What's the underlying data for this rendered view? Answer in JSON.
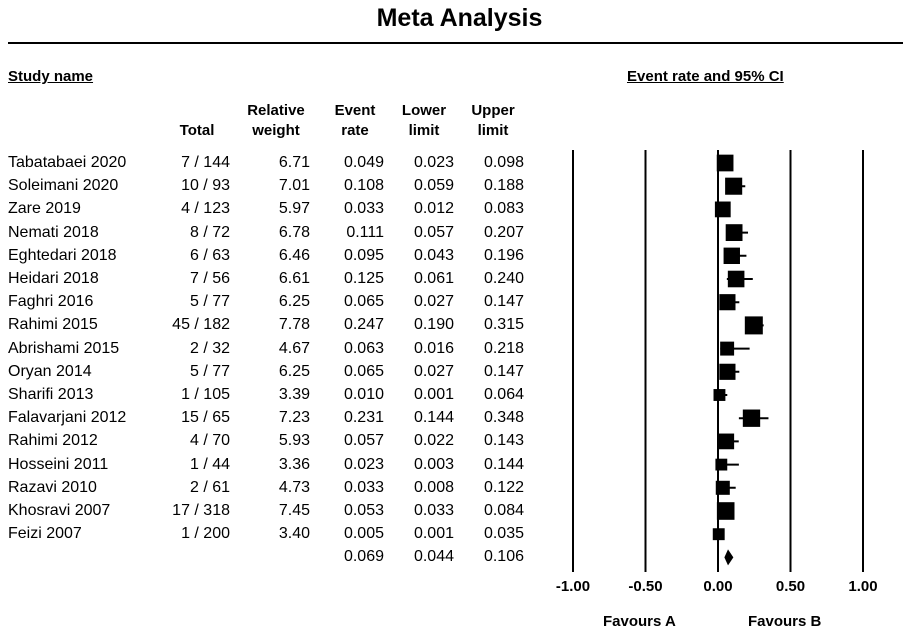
{
  "title": "Meta Analysis",
  "headers": {
    "study_name": "Study name",
    "ci": "Event rate and 95% CI",
    "total": "Total",
    "weight": [
      "Relative",
      "weight"
    ],
    "rate": [
      "Event",
      "rate"
    ],
    "lower": [
      "Lower",
      "limit"
    ],
    "upper": [
      "Upper",
      "limit"
    ]
  },
  "favours": {
    "a": "Favours A",
    "b": "Favours B"
  },
  "chart_data": {
    "type": "forest",
    "title": "Meta Analysis",
    "xlim": [
      -1.0,
      1.0
    ],
    "x_ticks": [
      "-1.00",
      "-0.50",
      "0.00",
      "0.50",
      "1.00"
    ],
    "x_tick_values": [
      -1.0,
      -0.5,
      0.0,
      0.5,
      1.0
    ],
    "studies": [
      {
        "name": "Tabatabaei 2020",
        "total": "7 / 144",
        "weight": "6.71",
        "rate": "0.049",
        "lower": "0.023",
        "upper": "0.098"
      },
      {
        "name": "Soleimani 2020",
        "total": "10 / 93",
        "weight": "7.01",
        "rate": "0.108",
        "lower": "0.059",
        "upper": "0.188"
      },
      {
        "name": "Zare 2019",
        "total": "4 / 123",
        "weight": "5.97",
        "rate": "0.033",
        "lower": "0.012",
        "upper": "0.083"
      },
      {
        "name": "Nemati 2018",
        "total": "8 / 72",
        "weight": "6.78",
        "rate": "0.111",
        "lower": "0.057",
        "upper": "0.207"
      },
      {
        "name": "Eghtedari 2018",
        "total": "6 / 63",
        "weight": "6.46",
        "rate": "0.095",
        "lower": "0.043",
        "upper": "0.196"
      },
      {
        "name": "Heidari 2018",
        "total": "7 / 56",
        "weight": "6.61",
        "rate": "0.125",
        "lower": "0.061",
        "upper": "0.240"
      },
      {
        "name": "Faghri 2016",
        "total": "5 / 77",
        "weight": "6.25",
        "rate": "0.065",
        "lower": "0.027",
        "upper": "0.147"
      },
      {
        "name": "Rahimi 2015",
        "total": "45 / 182",
        "weight": "7.78",
        "rate": "0.247",
        "lower": "0.190",
        "upper": "0.315"
      },
      {
        "name": "Abrishami 2015",
        "total": "2 / 32",
        "weight": "4.67",
        "rate": "0.063",
        "lower": "0.016",
        "upper": "0.218"
      },
      {
        "name": "Oryan 2014",
        "total": "5 / 77",
        "weight": "6.25",
        "rate": "0.065",
        "lower": "0.027",
        "upper": "0.147"
      },
      {
        "name": "Sharifi 2013",
        "total": "1 / 105",
        "weight": "3.39",
        "rate": "0.010",
        "lower": "0.001",
        "upper": "0.064"
      },
      {
        "name": "Falavarjani 2012",
        "total": "15 / 65",
        "weight": "7.23",
        "rate": "0.231",
        "lower": "0.144",
        "upper": "0.348"
      },
      {
        "name": "Rahimi 2012",
        "total": "4 / 70",
        "weight": "5.93",
        "rate": "0.057",
        "lower": "0.022",
        "upper": "0.143"
      },
      {
        "name": "Hosseini 2011",
        "total": "1 / 44",
        "weight": "3.36",
        "rate": "0.023",
        "lower": "0.003",
        "upper": "0.144"
      },
      {
        "name": "Razavi 2010",
        "total": "2 / 61",
        "weight": "4.73",
        "rate": "0.033",
        "lower": "0.008",
        "upper": "0.122"
      },
      {
        "name": "Khosravi 2007",
        "total": "17 / 318",
        "weight": "7.45",
        "rate": "0.053",
        "lower": "0.033",
        "upper": "0.084"
      },
      {
        "name": "Feizi 2007",
        "total": "1 / 200",
        "weight": "3.40",
        "rate": "0.005",
        "lower": "0.001",
        "upper": "0.035"
      }
    ],
    "summary": {
      "rate": "0.069",
      "lower": "0.044",
      "upper": "0.106"
    }
  }
}
